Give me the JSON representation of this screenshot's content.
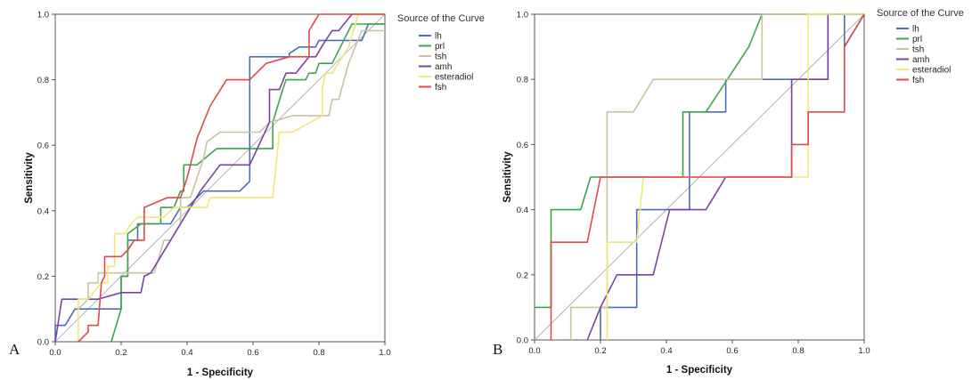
{
  "chart_data": [
    {
      "type": "line",
      "panel_label": "A",
      "xlabel": "1 - Specificity",
      "ylabel": "Sensitivity",
      "xlim": [
        0,
        1
      ],
      "ylim": [
        0,
        1
      ],
      "xticks": [
        "0.0",
        "0.2",
        "0.4",
        "0.6",
        "0.8",
        "1.0"
      ],
      "yticks": [
        "0.0",
        "0.2",
        "0.4",
        "0.6",
        "0.8",
        "1.0"
      ],
      "grid": false,
      "legend": {
        "title": "Source of the Curve",
        "placement": "right"
      },
      "series": [
        {
          "name": "lh",
          "color": "#4a6fb8",
          "points": [
            [
              0,
              0
            ],
            [
              0,
              0.05
            ],
            [
              0.03,
              0.05
            ],
            [
              0.06,
              0.1
            ],
            [
              0.2,
              0.1
            ],
            [
              0.2,
              0.2
            ],
            [
              0.22,
              0.2
            ],
            [
              0.22,
              0.31
            ],
            [
              0.25,
              0.31
            ],
            [
              0.25,
              0.36
            ],
            [
              0.35,
              0.36
            ],
            [
              0.38,
              0.41
            ],
            [
              0.4,
              0.41
            ],
            [
              0.45,
              0.46
            ],
            [
              0.56,
              0.46
            ],
            [
              0.59,
              0.49
            ],
            [
              0.59,
              0.87
            ],
            [
              0.71,
              0.87
            ],
            [
              0.71,
              0.88
            ],
            [
              0.74,
              0.9
            ],
            [
              0.79,
              0.9
            ],
            [
              0.8,
              0.92
            ],
            [
              0.93,
              0.92
            ],
            [
              0.95,
              0.97
            ],
            [
              1,
              0.97
            ]
          ]
        },
        {
          "name": "prl",
          "color": "#3aa64a",
          "points": [
            [
              0.17,
              0
            ],
            [
              0.2,
              0.1
            ],
            [
              0.2,
              0.2
            ],
            [
              0.22,
              0.2
            ],
            [
              0.22,
              0.33
            ],
            [
              0.26,
              0.36
            ],
            [
              0.32,
              0.36
            ],
            [
              0.32,
              0.41
            ],
            [
              0.36,
              0.41
            ],
            [
              0.38,
              0.46
            ],
            [
              0.39,
              0.46
            ],
            [
              0.39,
              0.54
            ],
            [
              0.43,
              0.54
            ],
            [
              0.49,
              0.59
            ],
            [
              0.66,
              0.59
            ],
            [
              0.66,
              0.67
            ],
            [
              0.69,
              0.77
            ],
            [
              0.7,
              0.8
            ],
            [
              0.76,
              0.8
            ],
            [
              0.77,
              0.82
            ],
            [
              0.79,
              0.82
            ],
            [
              0.8,
              0.85
            ],
            [
              0.84,
              0.85
            ],
            [
              0.9,
              0.97
            ],
            [
              1,
              0.97
            ]
          ]
        },
        {
          "name": "tsh",
          "color": "#c8c4a0",
          "points": [
            [
              0.07,
              0.1
            ],
            [
              0.1,
              0.13
            ],
            [
              0.1,
              0.18
            ],
            [
              0.13,
              0.18
            ],
            [
              0.13,
              0.21
            ],
            [
              0.3,
              0.21
            ],
            [
              0.33,
              0.31
            ],
            [
              0.35,
              0.31
            ],
            [
              0.38,
              0.36
            ],
            [
              0.38,
              0.44
            ],
            [
              0.41,
              0.44
            ],
            [
              0.45,
              0.56
            ],
            [
              0.46,
              0.61
            ],
            [
              0.5,
              0.64
            ],
            [
              0.62,
              0.64
            ],
            [
              0.65,
              0.67
            ],
            [
              0.72,
              0.69
            ],
            [
              0.83,
              0.69
            ],
            [
              0.84,
              0.74
            ],
            [
              0.86,
              0.74
            ],
            [
              0.89,
              0.85
            ],
            [
              0.93,
              0.95
            ],
            [
              1,
              0.95
            ]
          ]
        },
        {
          "name": "amh",
          "color": "#7a43a0",
          "points": [
            [
              0,
              0
            ],
            [
              0.02,
              0.13
            ],
            [
              0.07,
              0.13
            ],
            [
              0.12,
              0.13
            ],
            [
              0.13,
              0.13
            ],
            [
              0.2,
              0.15
            ],
            [
              0.26,
              0.15
            ],
            [
              0.27,
              0.2
            ],
            [
              0.29,
              0.21
            ],
            [
              0.41,
              0.41
            ],
            [
              0.44,
              0.46
            ],
            [
              0.5,
              0.54
            ],
            [
              0.59,
              0.54
            ],
            [
              0.65,
              0.67
            ],
            [
              0.65,
              0.77
            ],
            [
              0.68,
              0.77
            ],
            [
              0.7,
              0.82
            ],
            [
              0.73,
              0.82
            ],
            [
              0.77,
              0.87
            ],
            [
              0.79,
              0.87
            ],
            [
              0.82,
              0.92
            ],
            [
              0.84,
              0.95
            ],
            [
              0.86,
              0.95
            ],
            [
              0.9,
              1
            ],
            [
              1,
              1
            ]
          ]
        },
        {
          "name": "esteradiol",
          "color": "#f0e874",
          "points": [
            [
              0.07,
              0
            ],
            [
              0.07,
              0.13
            ],
            [
              0.1,
              0.13
            ],
            [
              0.14,
              0.18
            ],
            [
              0.16,
              0.18
            ],
            [
              0.16,
              0.23
            ],
            [
              0.18,
              0.23
            ],
            [
              0.18,
              0.33
            ],
            [
              0.21,
              0.33
            ],
            [
              0.23,
              0.36
            ],
            [
              0.25,
              0.38
            ],
            [
              0.33,
              0.38
            ],
            [
              0.36,
              0.41
            ],
            [
              0.46,
              0.41
            ],
            [
              0.47,
              0.44
            ],
            [
              0.66,
              0.44
            ],
            [
              0.68,
              0.64
            ],
            [
              0.72,
              0.64
            ],
            [
              0.81,
              0.69
            ],
            [
              0.81,
              0.77
            ],
            [
              0.82,
              0.82
            ],
            [
              0.84,
              0.82
            ],
            [
              0.89,
              0.9
            ],
            [
              0.92,
              1
            ],
            [
              1,
              1
            ]
          ]
        },
        {
          "name": "fsh",
          "color": "#e0484a",
          "points": [
            [
              0.07,
              0
            ],
            [
              0.1,
              0.03
            ],
            [
              0.1,
              0.05
            ],
            [
              0.13,
              0.05
            ],
            [
              0.14,
              0.18
            ],
            [
              0.15,
              0.2
            ],
            [
              0.15,
              0.26
            ],
            [
              0.2,
              0.26
            ],
            [
              0.22,
              0.28
            ],
            [
              0.24,
              0.31
            ],
            [
              0.27,
              0.31
            ],
            [
              0.27,
              0.41
            ],
            [
              0.34,
              0.44
            ],
            [
              0.38,
              0.44
            ],
            [
              0.4,
              0.5
            ],
            [
              0.43,
              0.62
            ],
            [
              0.47,
              0.72
            ],
            [
              0.52,
              0.8
            ],
            [
              0.59,
              0.8
            ],
            [
              0.64,
              0.85
            ],
            [
              0.71,
              0.87
            ],
            [
              0.77,
              0.87
            ],
            [
              0.77,
              0.95
            ],
            [
              0.8,
              1
            ],
            [
              1,
              1
            ]
          ]
        }
      ]
    },
    {
      "type": "line",
      "panel_label": "B",
      "xlabel": "1 - Specificity",
      "ylabel": "Sensitivity",
      "xlim": [
        0,
        1
      ],
      "ylim": [
        0,
        1
      ],
      "xticks": [
        "0.0",
        "0.2",
        "0.4",
        "0.6",
        "0.8",
        "1.0"
      ],
      "yticks": [
        "0.0",
        "0.2",
        "0.4",
        "0.6",
        "0.8",
        "1.0"
      ],
      "grid": false,
      "legend": {
        "title": "Source of the Curve",
        "placement": "right"
      },
      "series": [
        {
          "name": "lh",
          "color": "#4a6fb8",
          "points": [
            [
              0.2,
              0
            ],
            [
              0.2,
              0.1
            ],
            [
              0.22,
              0.1
            ],
            [
              0.31,
              0.1
            ],
            [
              0.31,
              0.4
            ],
            [
              0.47,
              0.4
            ],
            [
              0.47,
              0.7
            ],
            [
              0.58,
              0.7
            ],
            [
              0.58,
              0.8
            ],
            [
              0.89,
              0.8
            ],
            [
              0.89,
              1
            ],
            [
              0.94,
              1
            ],
            [
              0.94,
              0.9
            ],
            [
              1,
              1
            ]
          ]
        },
        {
          "name": "prl",
          "color": "#3aa64a",
          "points": [
            [
              0,
              0.1
            ],
            [
              0.05,
              0.1
            ],
            [
              0.05,
              0.4
            ],
            [
              0.14,
              0.4
            ],
            [
              0.17,
              0.5
            ],
            [
              0.45,
              0.5
            ],
            [
              0.45,
              0.7
            ],
            [
              0.52,
              0.7
            ],
            [
              0.65,
              0.9
            ],
            [
              0.69,
              1
            ],
            [
              1,
              1
            ]
          ]
        },
        {
          "name": "tsh",
          "color": "#c8c4a0",
          "points": [
            [
              0.11,
              0
            ],
            [
              0.11,
              0.1
            ],
            [
              0.22,
              0.1
            ],
            [
              0.22,
              0.7
            ],
            [
              0.3,
              0.7
            ],
            [
              0.36,
              0.8
            ],
            [
              0.69,
              0.8
            ],
            [
              0.69,
              1
            ],
            [
              1,
              1
            ]
          ]
        },
        {
          "name": "amh",
          "color": "#7a43a0",
          "points": [
            [
              0.16,
              0
            ],
            [
              0.2,
              0.1
            ],
            [
              0.25,
              0.2
            ],
            [
              0.36,
              0.2
            ],
            [
              0.41,
              0.4
            ],
            [
              0.52,
              0.4
            ],
            [
              0.58,
              0.5
            ],
            [
              0.78,
              0.5
            ],
            [
              0.78,
              0.8
            ],
            [
              0.89,
              0.8
            ],
            [
              0.89,
              1
            ],
            [
              1,
              1
            ]
          ]
        },
        {
          "name": "esteradiol",
          "color": "#f0e874",
          "points": [
            [
              0.22,
              0
            ],
            [
              0.22,
              0.3
            ],
            [
              0.31,
              0.3
            ],
            [
              0.33,
              0.5
            ],
            [
              0.83,
              0.5
            ],
            [
              0.83,
              1
            ],
            [
              1,
              1
            ]
          ]
        },
        {
          "name": "fsh",
          "color": "#e0484a",
          "points": [
            [
              0.05,
              0
            ],
            [
              0.05,
              0.3
            ],
            [
              0.16,
              0.3
            ],
            [
              0.2,
              0.5
            ],
            [
              0.78,
              0.5
            ],
            [
              0.78,
              0.6
            ],
            [
              0.83,
              0.6
            ],
            [
              0.83,
              0.7
            ],
            [
              0.94,
              0.7
            ],
            [
              0.94,
              0.9
            ],
            [
              1,
              1
            ]
          ]
        }
      ]
    }
  ]
}
